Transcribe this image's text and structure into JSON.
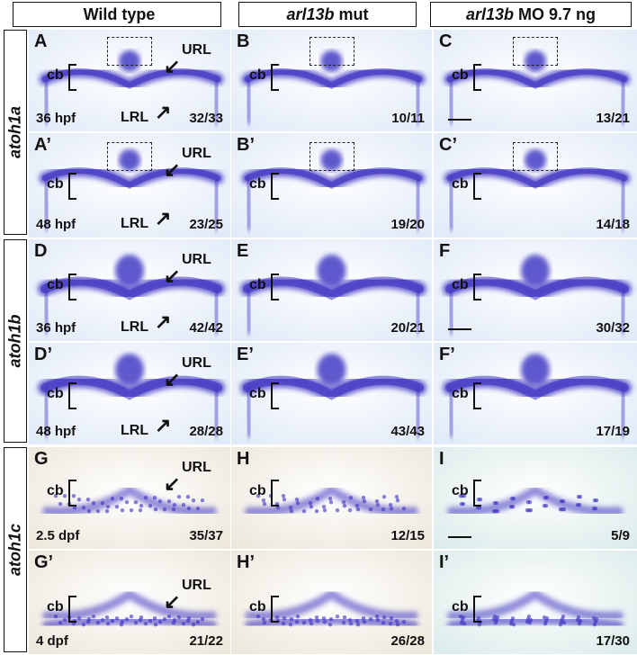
{
  "columns": [
    {
      "italic": "",
      "text": "Wild type"
    },
    {
      "italic": "arl13b",
      "text": "mut"
    },
    {
      "italic": "arl13b",
      "text": "MO 9.7 ng"
    }
  ],
  "row_groups": [
    {
      "gene": "atoh1a"
    },
    {
      "gene": "atoh1b"
    },
    {
      "gene": "atoh1c"
    }
  ],
  "labels": {
    "cb": "cb",
    "url": "URL",
    "lrl": "LRL"
  },
  "panels": [
    {
      "letter": "A",
      "count": "32/33",
      "stage": "36 hpf"
    },
    {
      "letter": "B",
      "count": "10/11",
      "stage": ""
    },
    {
      "letter": "C",
      "count": "13/21",
      "stage": ""
    },
    {
      "letter": "A’",
      "count": "23/25",
      "stage": "48 hpf"
    },
    {
      "letter": "B’",
      "count": "19/20",
      "stage": ""
    },
    {
      "letter": "C’",
      "count": "14/18",
      "stage": ""
    },
    {
      "letter": "D",
      "count": "42/42",
      "stage": "36 hpf"
    },
    {
      "letter": "E",
      "count": "20/21",
      "stage": ""
    },
    {
      "letter": "F",
      "count": "30/32",
      "stage": ""
    },
    {
      "letter": "D’",
      "count": "28/28",
      "stage": "48 hpf"
    },
    {
      "letter": "E’",
      "count": "43/43",
      "stage": ""
    },
    {
      "letter": "F’",
      "count": "17/19",
      "stage": ""
    },
    {
      "letter": "G",
      "count": "35/37",
      "stage": "2.5 dpf"
    },
    {
      "letter": "H",
      "count": "12/15",
      "stage": ""
    },
    {
      "letter": "I",
      "count": "5/9",
      "stage": ""
    },
    {
      "letter": "G’",
      "count": "21/22",
      "stage": "4 dpf"
    },
    {
      "letter": "H’",
      "count": "26/28",
      "stage": ""
    },
    {
      "letter": "I’",
      "count": "17/30",
      "stage": ""
    }
  ],
  "colors": {
    "stain": "#3a2fc0",
    "bg_blue": "#dfe9f7",
    "bg_brown": "#ece6d9",
    "bg_teal": "#d9ebe9"
  }
}
